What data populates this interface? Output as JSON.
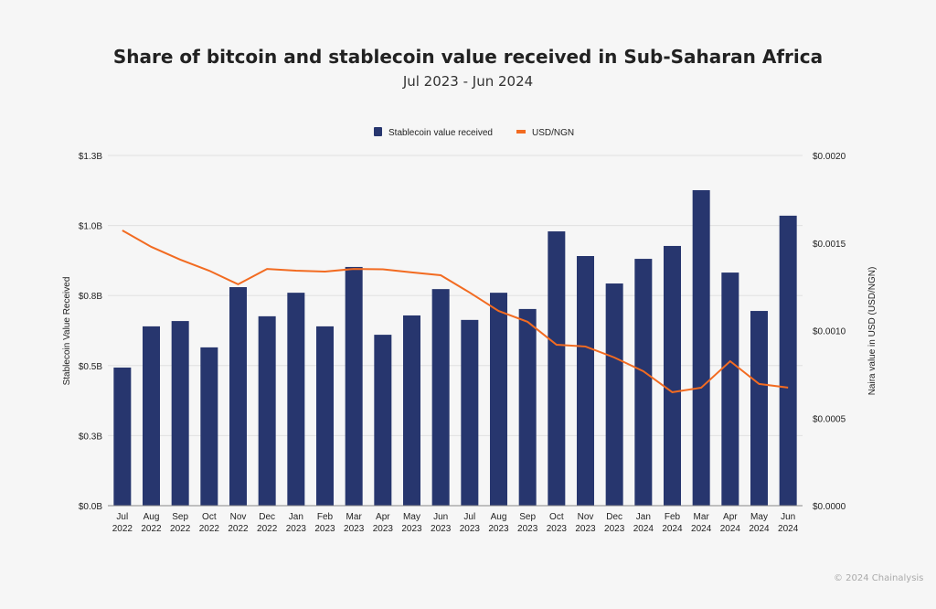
{
  "chart_data": {
    "type": "bar",
    "title": "Share of bitcoin and stablecoin value received in Sub-Saharan Africa",
    "subtitle": "Jul 2023 - Jun 2024",
    "categories": [
      [
        "Jul",
        "2022"
      ],
      [
        "Aug",
        "2022"
      ],
      [
        "Sep",
        "2022"
      ],
      [
        "Oct",
        "2022"
      ],
      [
        "Nov",
        "2022"
      ],
      [
        "Dec",
        "2022"
      ],
      [
        "Jan",
        "2023"
      ],
      [
        "Feb",
        "2023"
      ],
      [
        "Mar",
        "2023"
      ],
      [
        "Apr",
        "2023"
      ],
      [
        "May",
        "2023"
      ],
      [
        "Jun",
        "2023"
      ],
      [
        "Jul",
        "2023"
      ],
      [
        "Aug",
        "2023"
      ],
      [
        "Sep",
        "2023"
      ],
      [
        "Oct",
        "2023"
      ],
      [
        "Nov",
        "2023"
      ],
      [
        "Dec",
        "2023"
      ],
      [
        "Jan",
        "2024"
      ],
      [
        "Feb",
        "2024"
      ],
      [
        "Mar",
        "2024"
      ],
      [
        "Apr",
        "2024"
      ],
      [
        "May",
        "2024"
      ],
      [
        "Jun",
        "2024"
      ]
    ],
    "series": [
      {
        "name": "Stablecoin value received",
        "type": "bar",
        "axis": "left",
        "color": "#27366e",
        "values": [
          0.493,
          0.64,
          0.659,
          0.565,
          0.78,
          0.676,
          0.76,
          0.64,
          0.852,
          0.61,
          0.679,
          0.773,
          0.663,
          0.76,
          0.702,
          0.979,
          0.891,
          0.793,
          0.881,
          0.927,
          1.126,
          0.832,
          0.695,
          1.035
        ]
      },
      {
        "name": "USD/NGN",
        "type": "line",
        "axis": "right",
        "color": "#f26b21",
        "values": [
          0.001572,
          0.001478,
          0.001405,
          0.001342,
          0.001264,
          0.001352,
          0.001342,
          0.001337,
          0.001352,
          0.00135,
          0.001332,
          0.001316,
          0.001217,
          0.001112,
          0.00105,
          0.000919,
          0.000909,
          0.000846,
          0.000768,
          0.000648,
          0.000674,
          0.000825,
          0.000695,
          0.000674
        ]
      }
    ],
    "ylabel": "Stablecoin Value Received",
    "ylabel_right": "Naira value in USD (USD/NGN)",
    "ylim": [
      0,
      1.25
    ],
    "ylim_right": [
      0,
      0.002
    ],
    "yticks": [
      {
        "v": 0,
        "label": "$0.0B"
      },
      {
        "v": 0.25,
        "label": "$0.3B"
      },
      {
        "v": 0.5,
        "label": "$0.5B"
      },
      {
        "v": 0.75,
        "label": "$0.8B"
      },
      {
        "v": 1.0,
        "label": "$1.0B"
      },
      {
        "v": 1.25,
        "label": "$1.3B"
      }
    ],
    "yticks_right": [
      {
        "v": 0,
        "label": "$0.0000"
      },
      {
        "v": 0.0005,
        "label": "$0.0005"
      },
      {
        "v": 0.001,
        "label": "$0.0010"
      },
      {
        "v": 0.0015,
        "label": "$0.0015"
      },
      {
        "v": 0.002,
        "label": "$0.0020"
      }
    ],
    "grid": true,
    "legend": "top-center"
  },
  "credit": "© 2024 Chainalysis"
}
